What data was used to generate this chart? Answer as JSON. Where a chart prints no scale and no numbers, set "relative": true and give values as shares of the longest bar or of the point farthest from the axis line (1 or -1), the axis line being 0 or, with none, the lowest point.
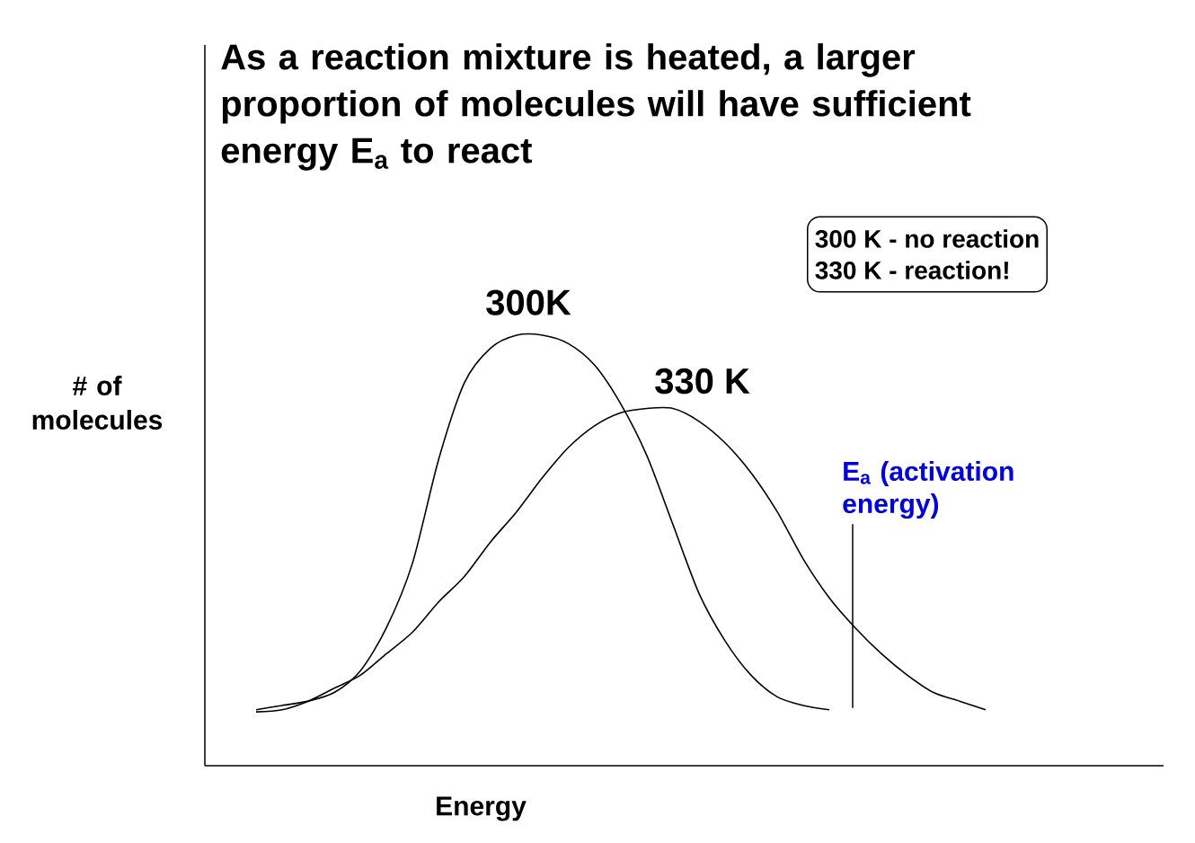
{
  "chart_data": {
    "type": "line",
    "title": "As a reaction mixture is heated, a larger proportion of molecules will have sufficient energy E$_{a}$ to react",
    "xlabel": "Energy",
    "ylabel": "# of molecules",
    "relative": true,
    "legend": false,
    "marker": "none",
    "categories": [
      null,
      null,
      null,
      null,
      null,
      null,
      null,
      null,
      null,
      null,
      null,
      null,
      null,
      null,
      null,
      null,
      null,
      null,
      null,
      null,
      null,
      null,
      null,
      null,
      null,
      null,
      null,
      null,
      null
    ],
    "series": [
      {
        "name": "300K",
        "color": "#000000",
        "values": [
          0.13,
          0.14,
          0.15,
          0.17,
          0.22,
          0.32,
          0.47,
          0.71,
          0.89,
          0.97,
          1.0,
          1.0,
          0.98,
          0.93,
          0.84,
          0.72,
          0.56,
          0.4,
          0.29,
          0.21,
          0.16,
          0.14,
          0.13,
          null,
          null,
          null,
          null,
          null,
          null
        ]
      },
      {
        "name": "330 K",
        "color": "#000000",
        "values": [
          0.125,
          0.13,
          0.15,
          0.18,
          0.21,
          0.26,
          0.31,
          0.38,
          0.44,
          0.52,
          0.59,
          0.67,
          0.74,
          0.79,
          0.82,
          0.83,
          0.83,
          0.8,
          0.75,
          0.68,
          0.59,
          0.48,
          0.39,
          0.32,
          0.26,
          0.21,
          0.17,
          0.15,
          0.13
        ]
      }
    ],
    "annotations": [
      "300 K - no reaction",
      "330 K - reaction!",
      "E$_{a}$ (activation energy)"
    ]
  }
}
